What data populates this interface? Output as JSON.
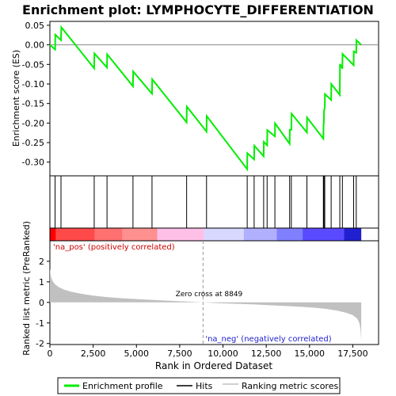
{
  "chart_data": {
    "type": "line",
    "title": "Enrichment plot: LYMPHOCYTE_DIFFERENTIATION",
    "top_panel": {
      "ylabel": "Enrichment score (ES)",
      "ylim": [
        -0.335,
        0.06
      ],
      "yticks": [
        0.05,
        0.0,
        -0.05,
        -0.1,
        -0.15,
        -0.2,
        -0.25,
        -0.3
      ],
      "ytick_labels": [
        "0.05",
        "0.00",
        "-0.05",
        "-0.10",
        "-0.15",
        "-0.20",
        "-0.25",
        "-0.30"
      ],
      "grid": false,
      "series_color": "#00ee00",
      "es_points": [
        [
          0,
          0.0
        ],
        [
          300,
          -0.012
        ],
        [
          310,
          0.026
        ],
        [
          640,
          0.012
        ],
        [
          660,
          0.045
        ],
        [
          2560,
          -0.06
        ],
        [
          2570,
          -0.022
        ],
        [
          3300,
          -0.058
        ],
        [
          3310,
          -0.024
        ],
        [
          4800,
          -0.106
        ],
        [
          4810,
          -0.068
        ],
        [
          5900,
          -0.125
        ],
        [
          5910,
          -0.088
        ],
        [
          7900,
          -0.198
        ],
        [
          7910,
          -0.158
        ],
        [
          9050,
          -0.222
        ],
        [
          9060,
          -0.182
        ],
        [
          11400,
          -0.318
        ],
        [
          11410,
          -0.277
        ],
        [
          11800,
          -0.293
        ],
        [
          11810,
          -0.258
        ],
        [
          12350,
          -0.285
        ],
        [
          12360,
          -0.248
        ],
        [
          12550,
          -0.257
        ],
        [
          12560,
          -0.218
        ],
        [
          13000,
          -0.234
        ],
        [
          13010,
          -0.201
        ],
        [
          13850,
          -0.253
        ],
        [
          13860,
          -0.217
        ],
        [
          13950,
          -0.217
        ],
        [
          13960,
          -0.176
        ],
        [
          14850,
          -0.224
        ],
        [
          14860,
          -0.186
        ],
        [
          15800,
          -0.24
        ],
        [
          15810,
          -0.205
        ],
        [
          15830,
          -0.2
        ],
        [
          15840,
          -0.167
        ],
        [
          15880,
          -0.162
        ],
        [
          15890,
          -0.126
        ],
        [
          16250,
          -0.141
        ],
        [
          16260,
          -0.1
        ],
        [
          16750,
          -0.128
        ],
        [
          16760,
          -0.049
        ],
        [
          16900,
          -0.061
        ],
        [
          16910,
          -0.023
        ],
        [
          17550,
          -0.052
        ],
        [
          17560,
          -0.017
        ],
        [
          17700,
          -0.02
        ],
        [
          17710,
          0.012
        ],
        [
          17990,
          0.0
        ]
      ]
    },
    "hits": [
      300,
      640,
      2560,
      3300,
      4800,
      5900,
      7900,
      9050,
      11400,
      11800,
      12350,
      12550,
      13000,
      13850,
      13950,
      14850,
      15800,
      15830,
      15880,
      16250,
      16750,
      16900,
      17550,
      17700
    ],
    "color_band": {
      "segments": [
        {
          "from": 0,
          "to": 350,
          "color": "#ff0000"
        },
        {
          "from": 350,
          "to": 2600,
          "color": "#ff4a4a"
        },
        {
          "from": 2600,
          "to": 4200,
          "color": "#ff7070"
        },
        {
          "from": 4200,
          "to": 6200,
          "color": "#ff9090"
        },
        {
          "from": 6200,
          "to": 8900,
          "color": "#ffc0e8"
        },
        {
          "from": 8900,
          "to": 11200,
          "color": "#d8d8ff"
        },
        {
          "from": 11200,
          "to": 13100,
          "color": "#b0b0ff"
        },
        {
          "from": 13100,
          "to": 14600,
          "color": "#8080ff"
        },
        {
          "from": 14600,
          "to": 17000,
          "color": "#5a4aff"
        },
        {
          "from": 17000,
          "to": 17990,
          "color": "#2020d0"
        }
      ]
    },
    "bottom_panel": {
      "ylabel": "Ranked list metric (PreRanked)",
      "ylim": [
        -2.05,
        3.0
      ],
      "yticks": [
        2,
        1,
        0,
        -1,
        -2
      ],
      "ytick_labels": [
        "2",
        "1",
        "0",
        "-1",
        "-2"
      ],
      "fill_color": "#c0c0c0",
      "metric_points": [
        [
          0,
          1.65
        ],
        [
          60,
          1.25
        ],
        [
          150,
          1.05
        ],
        [
          300,
          0.88
        ],
        [
          500,
          0.75
        ],
        [
          800,
          0.63
        ],
        [
          1200,
          0.52
        ],
        [
          1800,
          0.42
        ],
        [
          2500,
          0.33
        ],
        [
          3300,
          0.26
        ],
        [
          4200,
          0.2
        ],
        [
          5200,
          0.15
        ],
        [
          6200,
          0.11
        ],
        [
          7200,
          0.07
        ],
        [
          8000,
          0.04
        ],
        [
          8849,
          0.0
        ],
        [
          9800,
          -0.04
        ],
        [
          10800,
          -0.07
        ],
        [
          11800,
          -0.1
        ],
        [
          12800,
          -0.14
        ],
        [
          13800,
          -0.18
        ],
        [
          14600,
          -0.22
        ],
        [
          15400,
          -0.27
        ],
        [
          16000,
          -0.32
        ],
        [
          16600,
          -0.4
        ],
        [
          17100,
          -0.5
        ],
        [
          17500,
          -0.62
        ],
        [
          17750,
          -0.78
        ],
        [
          17880,
          -1.0
        ],
        [
          17950,
          -1.35
        ],
        [
          17990,
          -1.9
        ]
      ],
      "zero_cross_label": "Zero cross at 8849",
      "zero_cross_x": 8849,
      "pos_label": "'na_pos' (positively correlated)",
      "neg_label": "'na_neg' (negatively correlated)"
    },
    "xlabel": "Rank in Ordered Dataset",
    "xlim": [
      0,
      18990
    ],
    "xticks": [
      0,
      2500,
      5000,
      7500,
      10000,
      12500,
      15000,
      17500
    ],
    "xtick_labels": [
      "0",
      "2,500",
      "5,000",
      "7,500",
      "10,000",
      "12,500",
      "15,000",
      "17,500"
    ],
    "legend": {
      "placement": "bottom",
      "items": [
        {
          "label": "Enrichment profile",
          "color": "#00ee00"
        },
        {
          "label": "Hits",
          "color": "#000000"
        },
        {
          "label": "Ranking metric scores",
          "color": "#c0c0c0"
        }
      ]
    }
  }
}
